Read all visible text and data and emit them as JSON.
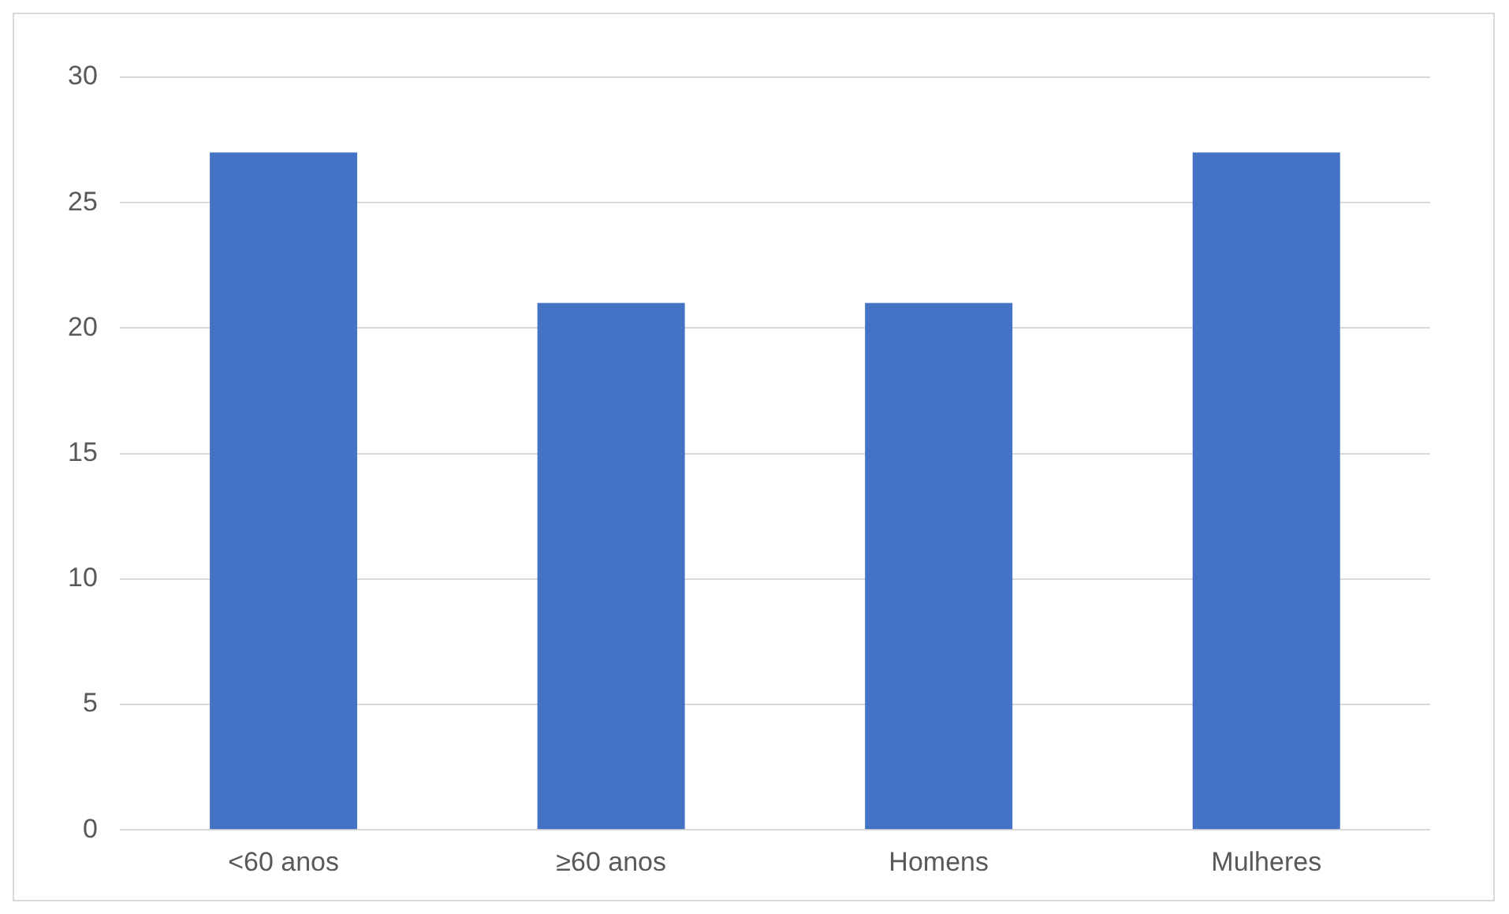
{
  "chart_data": {
    "type": "bar",
    "categories": [
      "<60 anos",
      "≥60 anos",
      "Homens",
      "Mulheres"
    ],
    "values": [
      27,
      21,
      21,
      27
    ],
    "color": "#4472c4",
    "ylim": [
      0,
      30
    ],
    "yticks": [
      0,
      5,
      10,
      15,
      20,
      25,
      30
    ],
    "grid": "y"
  }
}
